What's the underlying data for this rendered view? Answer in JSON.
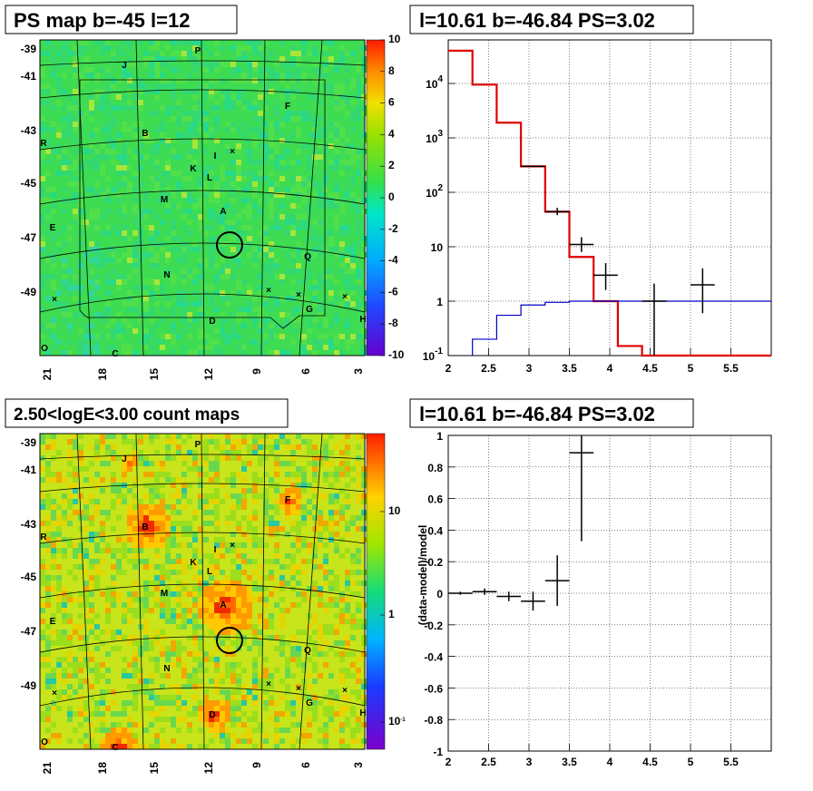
{
  "chart_data": [
    {
      "type": "heatmap",
      "title": "PS map b=-45 l=12",
      "lat_ticks": [
        "-39",
        "-41",
        "-43",
        "-45",
        "-47",
        "-49"
      ],
      "lon_ticks": [
        "21",
        "18",
        "15",
        "12",
        "9",
        "6",
        "3"
      ],
      "colorbar": {
        "ticks": [
          "10",
          "8",
          "6",
          "4",
          "2",
          "0",
          "-2",
          "-4",
          "-6",
          "-8",
          "-10"
        ],
        "min": -10,
        "max": 10
      },
      "sources": [
        "P",
        "J",
        "F",
        "B",
        "R",
        "I",
        "K",
        "L",
        "M",
        "A",
        "E",
        "Q",
        "N",
        "G",
        "D",
        "H",
        "O",
        "C"
      ]
    },
    {
      "type": "line",
      "title": "l=10.61 b=-46.84 PS=3.02",
      "xlim": [
        2,
        6
      ],
      "ylim_log": [
        -1,
        4.8
      ],
      "y_scale": "log",
      "x_ticks": [
        "2",
        "2.5",
        "3",
        "3.5",
        "4",
        "4.5",
        "5",
        "5.5"
      ],
      "y_ticks": [
        {
          "base": "10",
          "exp": "4",
          "v": 4
        },
        {
          "base": "10",
          "exp": "3",
          "v": 3
        },
        {
          "base": "10",
          "exp": "2",
          "v": 2
        },
        {
          "base": "10",
          "exp": "",
          "v": 1
        },
        {
          "base": "1",
          "exp": "",
          "v": 0
        },
        {
          "base": "10",
          "exp": "-1",
          "v": -1
        }
      ],
      "series": [
        {
          "color": "#e00000",
          "edges": [
            2,
            2.3,
            2.6,
            2.9,
            3.2,
            3.5,
            3.8,
            4.1,
            4.4,
            4.7,
            5.0,
            6.0
          ],
          "values": [
            40000,
            9500,
            1900,
            300,
            44,
            6.5,
            1.0,
            0.15,
            0.1,
            0.1,
            0.1
          ]
        },
        {
          "color": "#0000cc",
          "edges": [
            2.3,
            2.6,
            2.9,
            3.2,
            3.5,
            3.8,
            4.1,
            4.4,
            4.7,
            5.0,
            6.0
          ],
          "values": [
            0.2,
            0.55,
            0.85,
            0.95,
            1.0,
            1.0,
            1.0,
            1.0,
            1.0,
            1.0
          ]
        },
        {
          "color": "#000000",
          "points": [
            {
              "x": 3.05,
              "y": 300,
              "xerr": 0.15,
              "ylo": 290,
              "yhi": 310
            },
            {
              "x": 3.35,
              "y": 44,
              "xerr": 0.15,
              "ylo": 38,
              "yhi": 52
            },
            {
              "x": 3.65,
              "y": 11,
              "xerr": 0.15,
              "ylo": 8,
              "yhi": 15
            },
            {
              "x": 3.95,
              "y": 3,
              "xerr": 0.15,
              "ylo": 1.6,
              "yhi": 5
            },
            {
              "x": 4.55,
              "y": 1,
              "xerr": 0.15,
              "ylo": 0.1,
              "yhi": 2.1
            },
            {
              "x": 5.15,
              "y": 2,
              "xerr": 0.15,
              "ylo": 0.6,
              "yhi": 4
            }
          ]
        }
      ]
    },
    {
      "type": "heatmap",
      "title": "2.50<logE<3.00 count maps",
      "lat_ticks": [
        "-39",
        "-41",
        "-43",
        "-45",
        "-47",
        "-49"
      ],
      "lon_ticks": [
        "21",
        "18",
        "15",
        "12",
        "9",
        "6",
        "3"
      ],
      "colorbar": {
        "ticks": [
          "10",
          "1",
          "10^-1"
        ]
      },
      "sources": [
        "P",
        "J",
        "F",
        "B",
        "R",
        "I",
        "K",
        "L",
        "M",
        "A",
        "E",
        "Q",
        "N",
        "G",
        "D",
        "H",
        "O",
        "C"
      ]
    },
    {
      "type": "scatter",
      "title": "l=10.61 b=-46.84 PS=3.02",
      "ylabel": "(data-model)/model",
      "xlim": [
        2,
        6
      ],
      "ylim": [
        -1,
        1
      ],
      "x_ticks": [
        "2",
        "2.5",
        "3",
        "3.5",
        "4",
        "4.5",
        "5",
        "5.5"
      ],
      "y_ticks": [
        "1",
        "0.8",
        "0.6",
        "0.4",
        "0.2",
        "0",
        "-0.2",
        "-0.4",
        "-0.6",
        "-0.8",
        "-1"
      ],
      "points": [
        {
          "x": 2.15,
          "y": 0.0,
          "xerr": 0.15,
          "ylo": -0.01,
          "yhi": 0.01
        },
        {
          "x": 2.45,
          "y": 0.01,
          "xerr": 0.15,
          "ylo": -0.01,
          "yhi": 0.03
        },
        {
          "x": 2.75,
          "y": -0.02,
          "xerr": 0.15,
          "ylo": -0.05,
          "yhi": 0.01
        },
        {
          "x": 3.05,
          "y": -0.05,
          "xerr": 0.15,
          "ylo": -0.11,
          "yhi": 0.01
        },
        {
          "x": 3.35,
          "y": 0.08,
          "xerr": 0.15,
          "ylo": -0.08,
          "yhi": 0.24
        },
        {
          "x": 3.65,
          "y": 0.89,
          "xerr": 0.15,
          "ylo": 0.33,
          "yhi": 1.0
        }
      ]
    }
  ]
}
